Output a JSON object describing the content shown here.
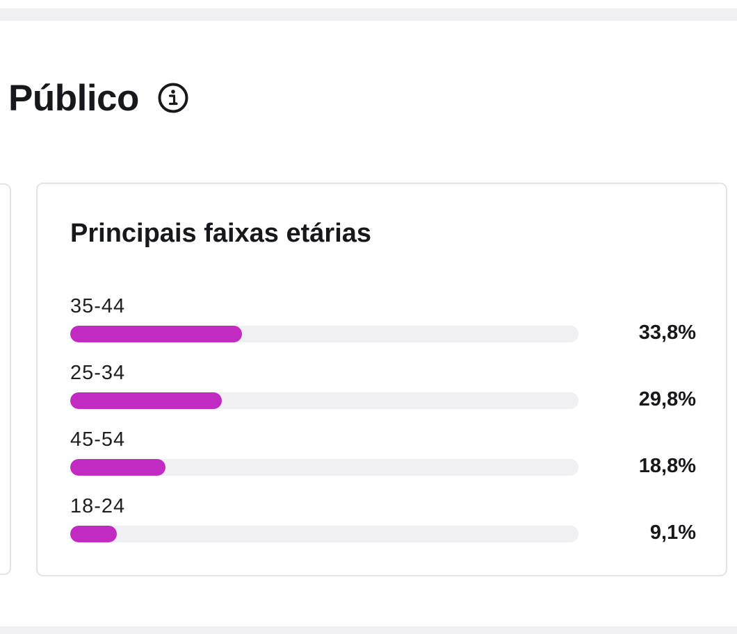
{
  "section": {
    "title": "Público",
    "info_icon": "info-icon"
  },
  "card": {
    "title": "Principais faixas etárias"
  },
  "colors": {
    "bar_fill": "#c12bc1",
    "bar_track": "#f0f0f3"
  },
  "chart_data": {
    "type": "bar",
    "title": "Principais faixas etárias",
    "categories": [
      "35-44",
      "25-34",
      "45-54",
      "18-24"
    ],
    "values": [
      33.8,
      29.8,
      18.8,
      9.1
    ],
    "value_labels": [
      "33,8%",
      "29,8%",
      "18,8%",
      "9,1%"
    ],
    "xlabel": "",
    "ylabel": "",
    "unit": "%"
  }
}
